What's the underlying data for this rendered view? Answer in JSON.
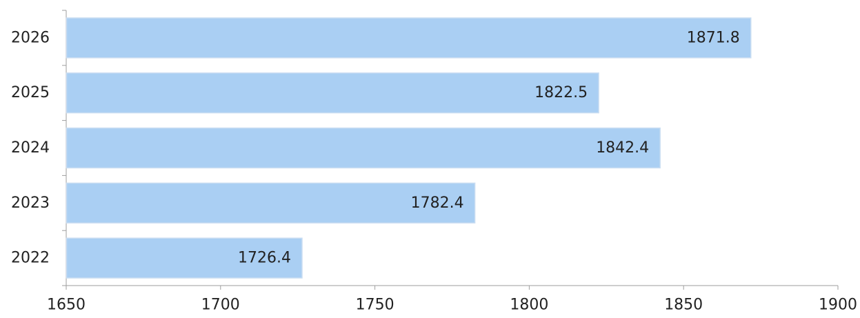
{
  "chart_data": {
    "type": "bar",
    "orientation": "horizontal",
    "title": "",
    "xlabel": "",
    "ylabel": "",
    "categories": [
      "2026",
      "2025",
      "2024",
      "2023",
      "2022"
    ],
    "values": [
      1871.8,
      1822.5,
      1842.4,
      1782.4,
      1726.4
    ],
    "data_labels": [
      "1871.8",
      "1822.5",
      "1842.4",
      "1782.4",
      "1726.4"
    ],
    "xlim": [
      1650,
      1900
    ],
    "x_ticks": [
      1650,
      1700,
      1750,
      1800,
      1850,
      1900
    ],
    "x_tick_labels": [
      "1650",
      "1700",
      "1750",
      "1800",
      "1850",
      "1900"
    ],
    "grid": false,
    "legend": "none",
    "colors": {
      "bar_fill": "#aacff3",
      "bar_stroke": "#c9ddf2",
      "axis": "#9e9e9e",
      "text": "#222222"
    }
  }
}
